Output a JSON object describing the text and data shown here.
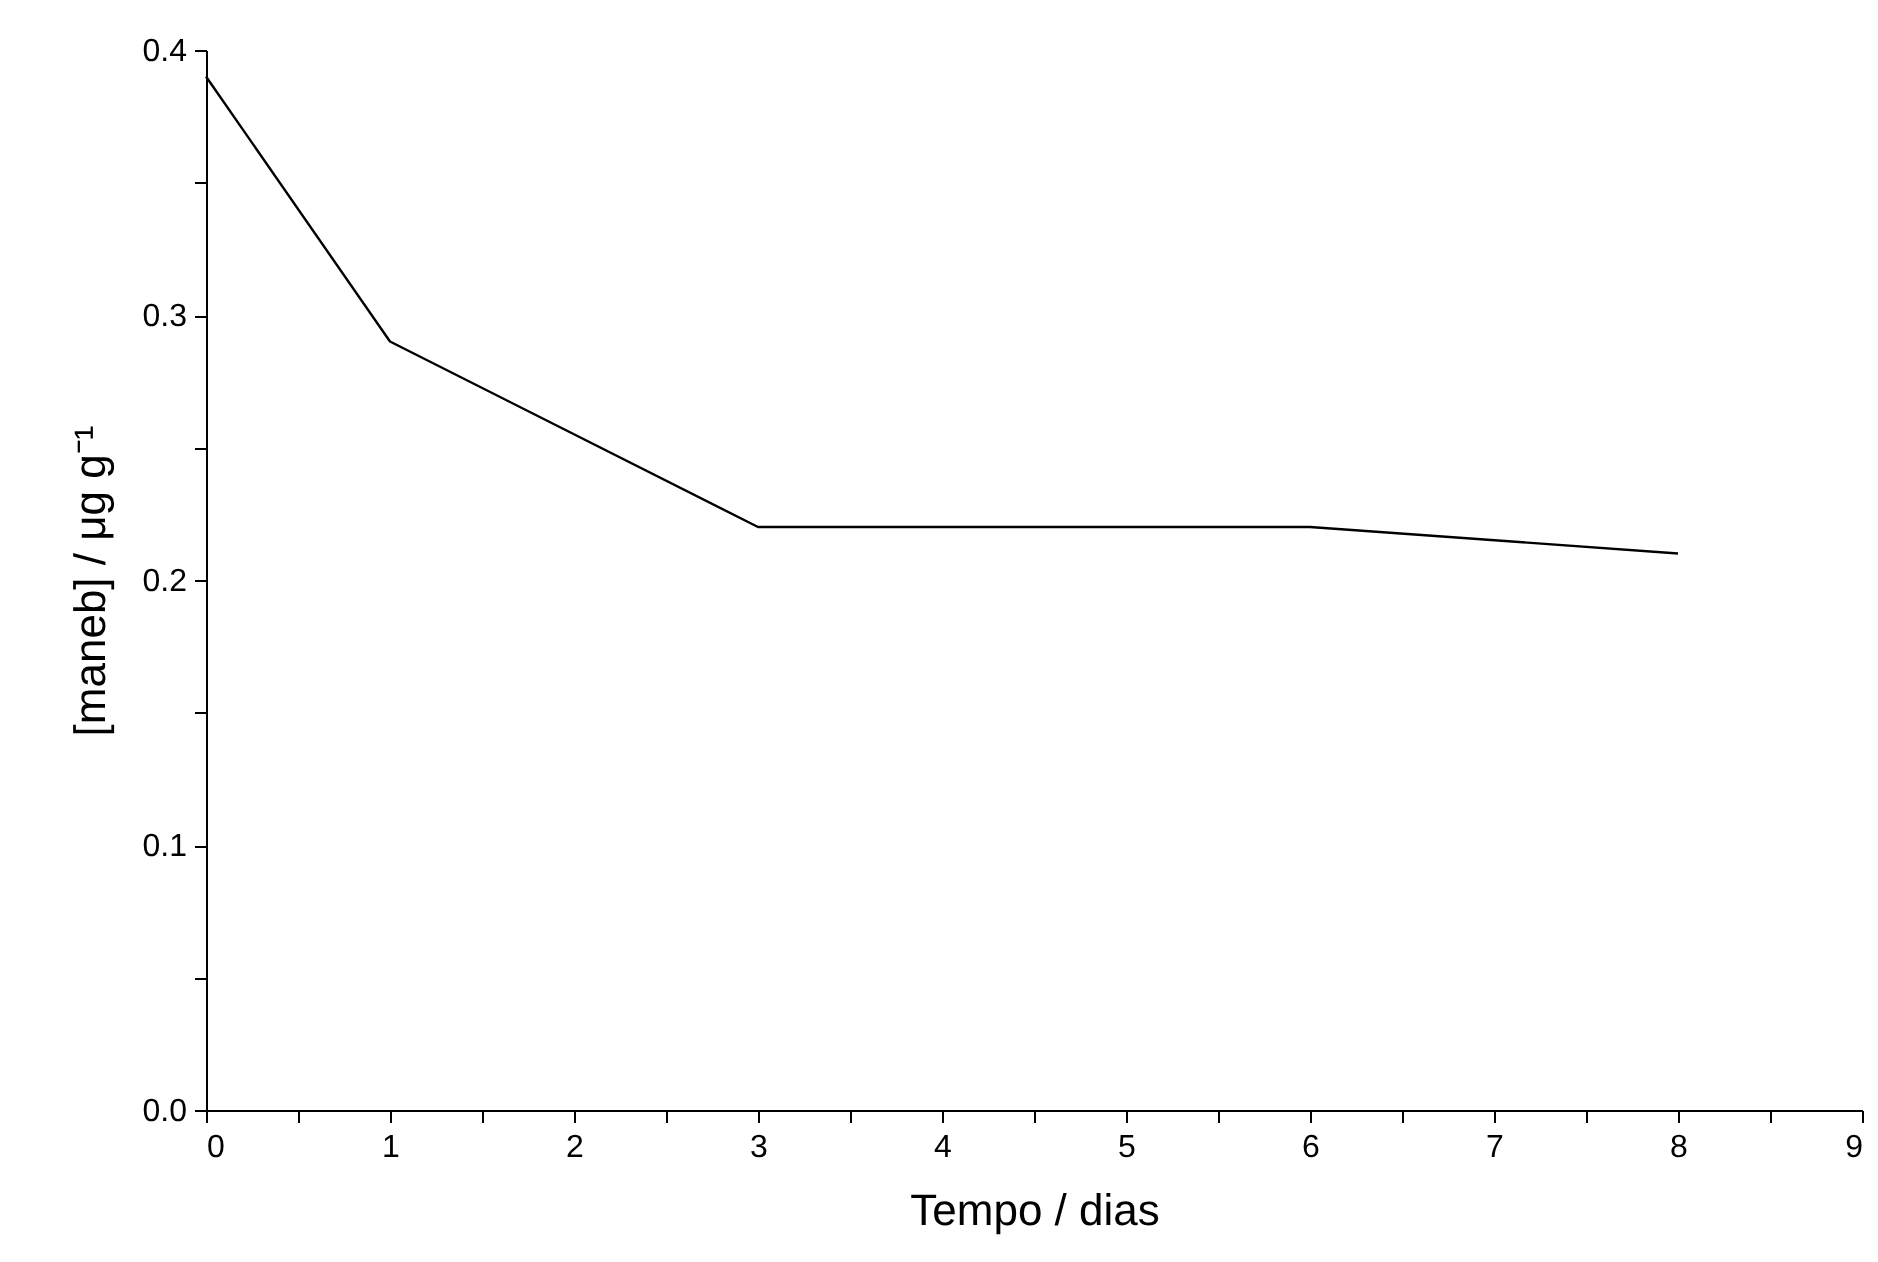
{
  "chart_data": {
    "type": "line",
    "xlabel": "Tempo / dias",
    "ylabel": "[maneb] / μg g⁻¹",
    "x": [
      0,
      1,
      3,
      6,
      8
    ],
    "series": [
      {
        "color": "#000000",
        "values": [
          0.39,
          0.29,
          0.22,
          0.22,
          0.21
        ]
      }
    ],
    "xlim": [
      0,
      9
    ],
    "ylim": [
      0,
      0.4
    ],
    "xticks": [
      0,
      {
        "value": 0.5,
        "label": null
      },
      1,
      {
        "value": 1.5,
        "label": null
      },
      2,
      {
        "value": 2.5,
        "label": null
      },
      3,
      {
        "value": 3.5,
        "label": null
      },
      4,
      {
        "value": 4.5,
        "label": null
      },
      5,
      {
        "value": 5.5,
        "label": null
      },
      6,
      {
        "value": 6.5,
        "label": null
      },
      7,
      {
        "value": 7.5,
        "label": null
      },
      8,
      {
        "value": 8.5,
        "label": null
      },
      9
    ],
    "yticks": [
      {
        "value": 0,
        "label": "0.0"
      },
      {
        "value": 0.05,
        "label": null
      },
      0.1,
      {
        "value": 0.15,
        "label": null
      },
      0.2,
      {
        "value": 0.25,
        "label": null
      },
      0.3,
      {
        "value": 0.35,
        "label": null
      },
      0.4
    ],
    "grid": false,
    "marker": "none",
    "line_style": "solid"
  }
}
